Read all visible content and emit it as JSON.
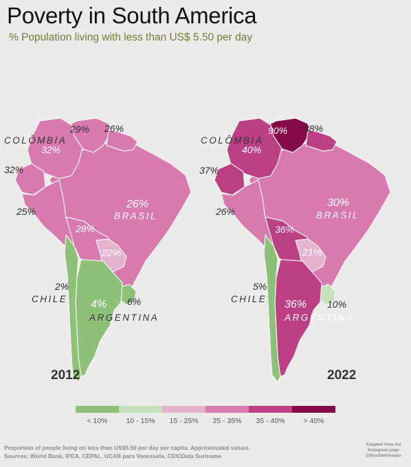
{
  "header": {
    "title": "Poverty in South America",
    "subtitle": "% Population living with less than US$ 5.50 per day"
  },
  "colors": {
    "lt10": "#8cc177",
    "r10_15": "#c6e1bb",
    "r15_25": "#e4b4cd",
    "r25_35": "#d97aae",
    "r35_40": "#bc3f83",
    "gt40": "#860a4a"
  },
  "maps": [
    {
      "year": "2012",
      "labels": {
        "colombia_name": "COLÔMBIA",
        "venezuela": "29%",
        "guyana": "26%",
        "colombia": "32%",
        "ecuador": "32%",
        "peru": "25%",
        "brazil": "26%",
        "brazil_name": "BRASIL",
        "bolivia": "28%",
        "paraguay": "22%",
        "chile": "2%",
        "chile_name": "CHILE",
        "argentina": "4%",
        "argentina_name": "ARGENTINA",
        "uruguay": "6%"
      }
    },
    {
      "year": "2022",
      "labels": {
        "colombia_name": "COLÔMBIA",
        "venezuela": "90%",
        "guyana": "38%",
        "colombia": "40%",
        "ecuador": "37%",
        "peru": "26%",
        "brazil": "30%",
        "brazil_name": "BRASIL",
        "bolivia": "36%",
        "paraguay": "21%",
        "chile": "5%",
        "chile_name": "CHILE",
        "argentina": "36%",
        "argentina_name": "ARGENTINA",
        "uruguay": "10%"
      }
    }
  ],
  "legend": [
    {
      "label": "< 10%",
      "color": "#8cc177"
    },
    {
      "label": "10 - 15%",
      "color": "#c6e1bb"
    },
    {
      "label": "15 - 25%",
      "color": "#e4b4cd"
    },
    {
      "label": "25 - 35%",
      "color": "#d97aae"
    },
    {
      "label": "35 - 40%",
      "color": "#bc3f83"
    },
    {
      "label": "> 40%",
      "color": "#860a4a"
    }
  ],
  "footer": {
    "line1": "Proportion of people living on less than US$5.50 per day per capita. Approximated values.",
    "line2": "Sources: World Bank, IPEA, CEPAL, UCAB para Venezuela, CEICData Suriname"
  },
  "credit": {
    "line1": "Adapted from the",
    "line2": "Instagram page",
    "line3": "@Brasilemmapas"
  },
  "fills": {
    "2012": {
      "colombia": "#d97aae",
      "venezuela": "#d97aae",
      "guianas": "#d97aae",
      "ecuador": "#d97aae",
      "peru": "#d97aae",
      "brazil": "#d97aae",
      "bolivia": "#d97aae",
      "paraguay": "#e4b4cd",
      "chile": "#8cc177",
      "argentina": "#8cc177",
      "uruguay": "#8cc177"
    },
    "2022": {
      "colombia": "#bc3f83",
      "venezuela": "#860a4a",
      "guianas": "#bc3f83",
      "ecuador": "#bc3f83",
      "peru": "#d97aae",
      "brazil": "#d97aae",
      "bolivia": "#bc3f83",
      "paraguay": "#e4b4cd",
      "chile": "#8cc177",
      "argentina": "#bc3f83",
      "uruguay": "#c6e1bb"
    }
  }
}
